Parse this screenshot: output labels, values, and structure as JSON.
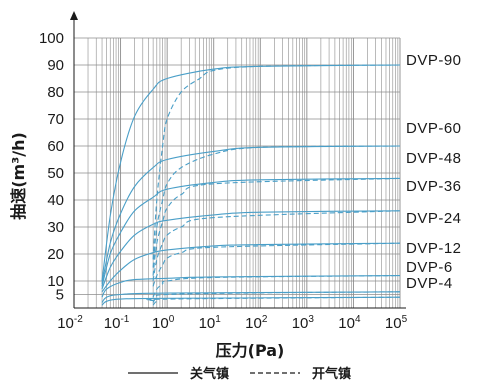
{
  "chart_data": {
    "type": "line",
    "xlabel": "压力(Pa)",
    "ylabel": "抽速(m³/h)",
    "x_scale": "log",
    "xlim": [
      0.01,
      100000
    ],
    "ylim": [
      0,
      100
    ],
    "grid": true,
    "x_ticks": [
      {
        "base": "10",
        "exp": "-2"
      },
      {
        "base": "10",
        "exp": "-1"
      },
      {
        "base": "10",
        "exp": "0"
      },
      {
        "base": "10",
        "exp": "1"
      },
      {
        "base": "10",
        "exp": "2"
      },
      {
        "base": "10",
        "exp": "3"
      },
      {
        "base": "10",
        "exp": "4"
      },
      {
        "base": "10",
        "exp": "5"
      }
    ],
    "y_ticks": [
      "5",
      "10",
      "20",
      "30",
      "40",
      "50",
      "60",
      "70",
      "80",
      "90",
      "100"
    ],
    "legend": [
      {
        "label": "关气镇",
        "style": "solid"
      },
      {
        "label": "开气镇",
        "style": "dashed"
      }
    ],
    "series": [
      {
        "name": "DVP-90",
        "gas_ballast_closed": [
          [
            0.04,
            10
          ],
          [
            0.06,
            34
          ],
          [
            0.1,
            54
          ],
          [
            0.2,
            71
          ],
          [
            0.5,
            81
          ],
          [
            1,
            85
          ],
          [
            10,
            88.5
          ],
          [
            100,
            89.5
          ],
          [
            100000,
            90
          ]
        ],
        "gas_ballast_open": [
          [
            0.5,
            18
          ],
          [
            0.6,
            40
          ],
          [
            0.8,
            60
          ],
          [
            1,
            70
          ],
          [
            2,
            80
          ],
          [
            5,
            85
          ],
          [
            10,
            88
          ],
          [
            100,
            89.5
          ],
          [
            100000,
            90
          ]
        ]
      },
      {
        "name": "DVP-60",
        "gas_ballast_closed": [
          [
            0.04,
            9
          ],
          [
            0.06,
            24
          ],
          [
            0.1,
            35
          ],
          [
            0.2,
            45
          ],
          [
            0.5,
            52
          ],
          [
            1,
            55
          ],
          [
            10,
            58
          ],
          [
            100,
            59.5
          ],
          [
            100000,
            60
          ]
        ],
        "gas_ballast_open": [
          [
            0.5,
            15
          ],
          [
            0.6,
            30
          ],
          [
            0.8,
            40
          ],
          [
            1,
            46
          ],
          [
            2,
            52
          ],
          [
            10,
            57
          ],
          [
            100,
            59.5
          ],
          [
            100000,
            60
          ]
        ]
      },
      {
        "name": "DVP-48",
        "gas_ballast_closed": [
          [
            0.04,
            8
          ],
          [
            0.06,
            20
          ],
          [
            0.1,
            28
          ],
          [
            0.2,
            36
          ],
          [
            0.5,
            41
          ],
          [
            1,
            44
          ],
          [
            10,
            46.5
          ],
          [
            100,
            47.5
          ],
          [
            100000,
            48
          ]
        ],
        "gas_ballast_open": [
          [
            0.5,
            12
          ],
          [
            0.6,
            24
          ],
          [
            0.8,
            32
          ],
          [
            1,
            37
          ],
          [
            2,
            42
          ],
          [
            10,
            46
          ],
          [
            100000,
            48
          ]
        ]
      },
      {
        "name": "DVP-36",
        "gas_ballast_closed": [
          [
            0.04,
            7
          ],
          [
            0.06,
            15
          ],
          [
            0.1,
            21
          ],
          [
            0.2,
            27
          ],
          [
            0.5,
            31
          ],
          [
            1,
            32.5
          ],
          [
            10,
            34.5
          ],
          [
            100,
            35.5
          ],
          [
            100000,
            36
          ]
        ],
        "gas_ballast_open": [
          [
            0.5,
            10
          ],
          [
            0.6,
            18
          ],
          [
            0.8,
            24
          ],
          [
            1,
            27
          ],
          [
            2,
            30
          ],
          [
            10,
            33.5
          ],
          [
            100000,
            36
          ]
        ]
      },
      {
        "name": "DVP-24",
        "gas_ballast_closed": [
          [
            0.04,
            6
          ],
          [
            0.06,
            10
          ],
          [
            0.1,
            14
          ],
          [
            0.2,
            18
          ],
          [
            0.5,
            20.5
          ],
          [
            1,
            21.5
          ],
          [
            10,
            23
          ],
          [
            100,
            23.5
          ],
          [
            100000,
            24
          ]
        ],
        "gas_ballast_open": [
          [
            0.5,
            8
          ],
          [
            0.6,
            12
          ],
          [
            0.8,
            16
          ],
          [
            1,
            18.5
          ],
          [
            2,
            20.5
          ],
          [
            10,
            22.5
          ],
          [
            100000,
            24
          ]
        ]
      },
      {
        "name": "DVP-12",
        "gas_ballast_closed": [
          [
            0.04,
            4
          ],
          [
            0.05,
            7
          ],
          [
            0.1,
            9.5
          ],
          [
            0.2,
            10.5
          ],
          [
            1,
            11
          ],
          [
            10,
            11.5
          ],
          [
            100000,
            12
          ]
        ],
        "gas_ballast_open": [
          [
            0.5,
            4
          ],
          [
            0.6,
            7
          ],
          [
            0.8,
            9
          ],
          [
            1,
            10
          ],
          [
            10,
            11.3
          ],
          [
            100000,
            12
          ]
        ]
      },
      {
        "name": "DVP-6",
        "gas_ballast_closed": [
          [
            0.04,
            2
          ],
          [
            0.05,
            4
          ],
          [
            0.1,
            5
          ],
          [
            1,
            5.5
          ],
          [
            100000,
            6
          ]
        ],
        "gas_ballast_open": [
          [
            0.5,
            2
          ],
          [
            0.6,
            4
          ],
          [
            1,
            5
          ],
          [
            100,
            5.6
          ],
          [
            100000,
            6
          ]
        ]
      },
      {
        "name": "DVP-4",
        "gas_ballast_closed": [
          [
            0.04,
            1
          ],
          [
            0.05,
            2.5
          ],
          [
            0.1,
            3.3
          ],
          [
            1,
            3.6
          ],
          [
            100000,
            4
          ]
        ],
        "gas_ballast_open": [
          [
            0.5,
            1
          ],
          [
            0.6,
            2.5
          ],
          [
            1,
            3.3
          ],
          [
            100000,
            4
          ]
        ]
      }
    ],
    "colors": {
      "curve": "#4a9fc8",
      "grid": "#8c8c8c",
      "axis": "#1a1a1a",
      "text": "#1a1a1a"
    }
  }
}
